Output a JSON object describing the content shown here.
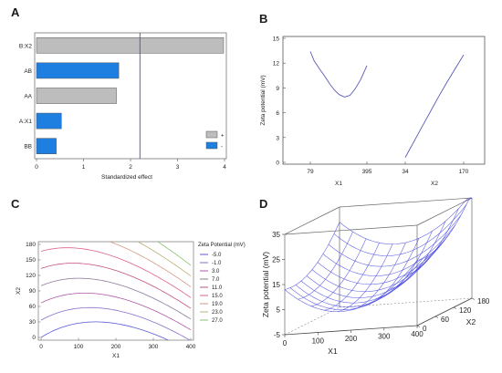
{
  "chart_data": [
    {
      "panel": "A",
      "type": "bar",
      "orientation": "horizontal",
      "categories": [
        "B:X2",
        "AB",
        "AA",
        "A:X1",
        "BB"
      ],
      "values": [
        3.98,
        1.75,
        1.7,
        0.53,
        0.42
      ],
      "signs": [
        "+",
        "-",
        "+",
        "-",
        "-"
      ],
      "xlabel": "Standardized effect",
      "ylabel": "",
      "xlim": [
        0,
        4
      ],
      "xticks": [
        "0",
        "1",
        "2",
        "3",
        "4"
      ],
      "reference_line": 2.2,
      "legend": [
        {
          "label": "+",
          "color": "#bdbdbd"
        },
        {
          "label": "-",
          "color": "#1e7fe0"
        }
      ],
      "legend_position": "right"
    },
    {
      "panel": "B",
      "type": "line",
      "ylabel": "Zeta potential (mV)",
      "ylim": [
        0,
        15
      ],
      "yticks": [
        "0",
        "3",
        "6",
        "9",
        "12",
        "15"
      ],
      "factors": [
        {
          "name": "X1",
          "range_labels": [
            "79",
            "395"
          ],
          "x": [
            79,
            100,
            130,
            160,
            190,
            215,
            240,
            270,
            300,
            330,
            360,
            395
          ],
          "y": [
            13.4,
            12.3,
            11.3,
            10.4,
            9.4,
            8.7,
            8.2,
            7.9,
            8.1,
            8.9,
            10.0,
            11.7
          ]
        },
        {
          "name": "X2",
          "range_labels": [
            "34",
            "170"
          ],
          "x": [
            34,
            50,
            70,
            90,
            110,
            130,
            150,
            170
          ],
          "y": [
            0.6,
            2.1,
            4.0,
            5.9,
            7.8,
            9.6,
            11.3,
            13.0
          ]
        }
      ]
    },
    {
      "panel": "C",
      "type": "contour",
      "xlabel": "X1",
      "ylabel": "X2",
      "xlim": [
        0,
        400
      ],
      "ylim": [
        0,
        180
      ],
      "xticks": [
        "0",
        "100",
        "200",
        "300",
        "400"
      ],
      "yticks": [
        "0",
        "30",
        "60",
        "90",
        "120",
        "150",
        "180"
      ],
      "legend_title": "Zeta Potential (mV)",
      "legend_position": "right",
      "levels": [
        {
          "label": "-5.0",
          "value": -5,
          "color": "#5b5bd6"
        },
        {
          "label": "-1.0",
          "value": -1,
          "color": "#8a6fc9"
        },
        {
          "label": "3.0",
          "value": 3,
          "color": "#b05aa8"
        },
        {
          "label": "7.0",
          "value": 7,
          "color": "#8f7a9a"
        },
        {
          "label": "11.0",
          "value": 11,
          "color": "#c05080"
        },
        {
          "label": "15.0",
          "value": 15,
          "color": "#e0608a"
        },
        {
          "label": "19.0",
          "value": 19,
          "color": "#d59a80"
        },
        {
          "label": "23.0",
          "value": 23,
          "color": "#b8b070"
        },
        {
          "label": "27.0",
          "value": 27,
          "color": "#88c070"
        }
      ]
    },
    {
      "panel": "D",
      "type": "surface",
      "xlabel": "X1",
      "ylabel": "X2",
      "zlabel": "Zeta potential (mV)",
      "xlim": [
        0,
        400
      ],
      "ylim": [
        0,
        180
      ],
      "zlim": [
        -5,
        35
      ],
      "xticks": [
        "0",
        "100",
        "200",
        "300",
        "400"
      ],
      "yticks": [
        "0",
        "60",
        "120",
        "180"
      ],
      "zticks": [
        "-5",
        "5",
        "15",
        "25",
        "35"
      ],
      "mesh_color": "#4a4ae0"
    }
  ],
  "panels": {
    "a": "A",
    "b": "B",
    "c": "C",
    "d": "D"
  }
}
